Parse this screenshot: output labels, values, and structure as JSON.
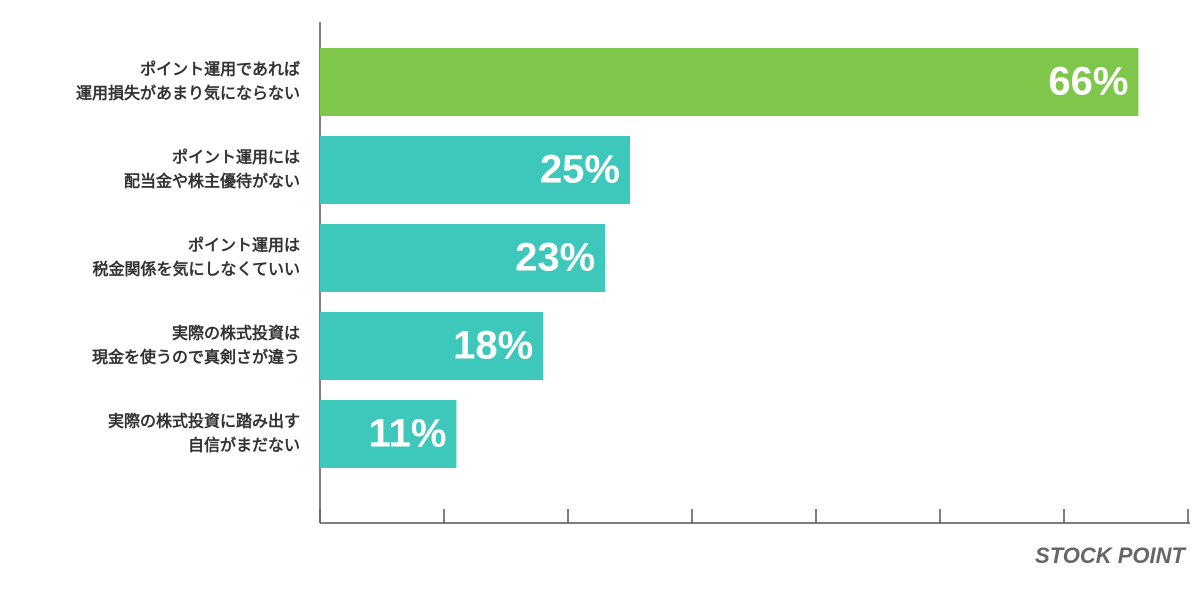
{
  "chart_data": {
    "type": "hbar",
    "categories": [
      [
        "ポイント運用であれば",
        "運用損失があまり気にならない"
      ],
      [
        "ポイント運用には",
        "配当金や株主優待がない"
      ],
      [
        "ポイント運用は",
        "税金関係を気にしなくていい"
      ],
      [
        "実際の株式投資は",
        "現金を使うので真剣さが違う"
      ],
      [
        "実際の株式投資に踏み出す",
        "自信がまだない"
      ]
    ],
    "values": [
      66,
      25,
      23,
      18,
      11
    ],
    "value_labels": [
      "66%",
      "25%",
      "23%",
      "18%",
      "11%"
    ],
    "colors": [
      "#7ec74a",
      "#3ec8bb",
      "#3ec8bb",
      "#3ec8bb",
      "#3ec8bb"
    ],
    "xlim": [
      0,
      70
    ],
    "xticks": [
      0,
      10,
      20,
      30,
      40,
      50,
      60,
      70
    ],
    "watermark": "STOCK POINT"
  }
}
